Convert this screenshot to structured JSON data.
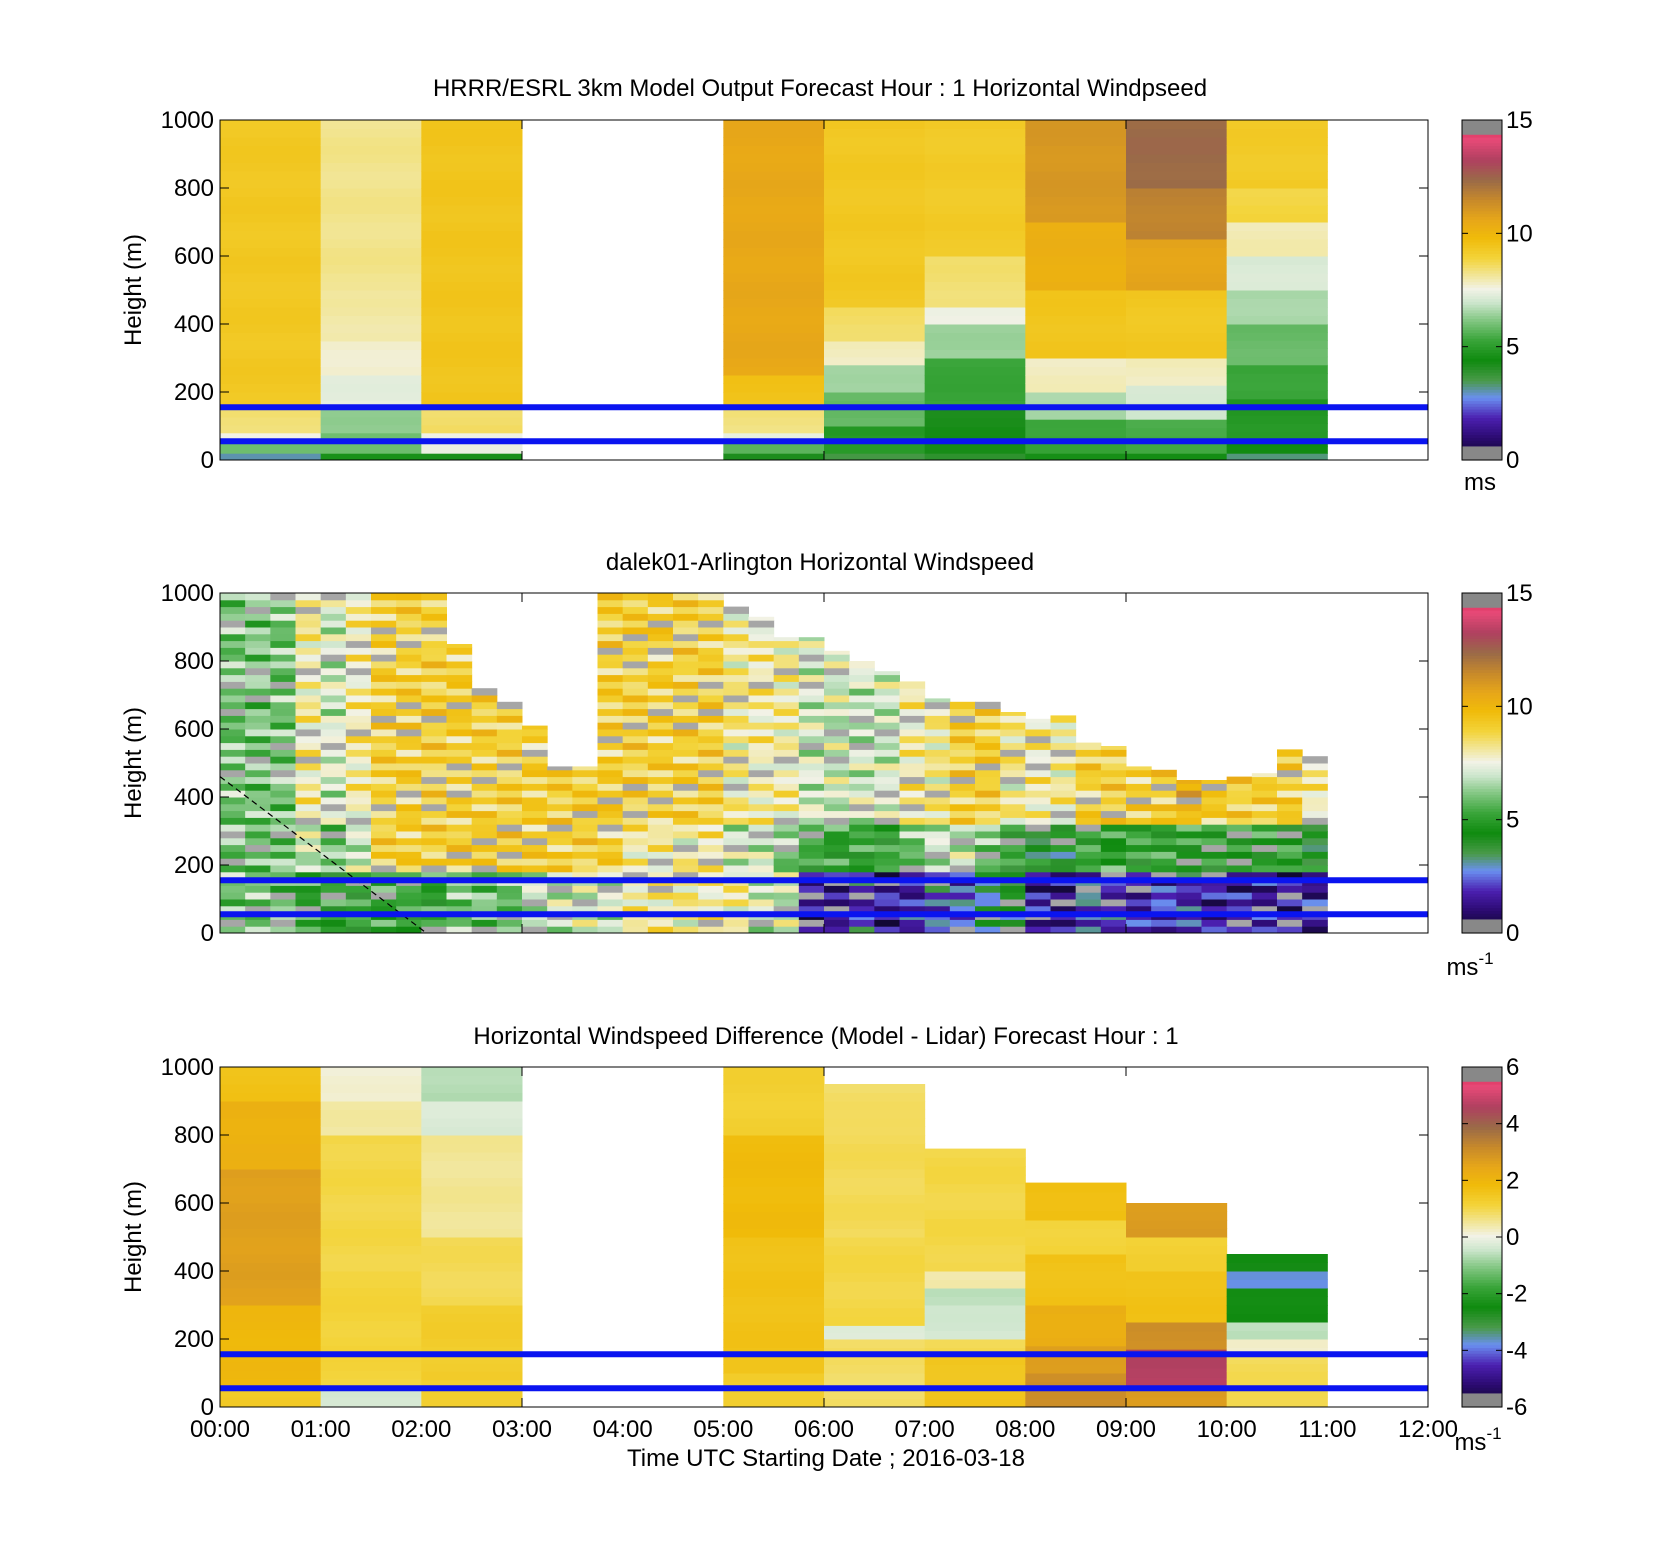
{
  "chart_data": [
    {
      "type": "heatmap",
      "title": "HRRR/ESRL 3km Model Output   Forecast Hour : 1 Horizontal Windpseed",
      "ylabel": "Height (m)",
      "xlabel": "",
      "xlim_hours": [
        0,
        12
      ],
      "ylim": [
        0,
        1000
      ],
      "yticks": [
        "0",
        "200",
        "400",
        "600",
        "800",
        "1000"
      ],
      "colorbar": {
        "ticks": [
          "0",
          "5",
          "10",
          "15"
        ],
        "unit": "ms",
        "range": [
          0,
          15
        ]
      },
      "reference_lines_m": [
        55,
        155
      ],
      "columns": [
        {
          "hour": 0,
          "top": 1000,
          "levels": [
            [
              0,
              20,
              3
            ],
            [
              20,
              50,
              5.8
            ],
            [
              50,
              80,
              7.5
            ],
            [
              80,
              150,
              8.4
            ],
            [
              150,
              1000,
              9.3
            ]
          ]
        },
        {
          "hour": 1,
          "top": 1000,
          "levels": [
            [
              0,
              20,
              4.5
            ],
            [
              20,
              80,
              5.8
            ],
            [
              80,
              150,
              6.3
            ],
            [
              150,
              250,
              7.3
            ],
            [
              250,
              350,
              7.7
            ],
            [
              350,
              500,
              8.0
            ],
            [
              500,
              1000,
              8.2
            ]
          ]
        },
        {
          "hour": 2,
          "top": 1000,
          "levels": [
            [
              0,
              20,
              4.5
            ],
            [
              20,
              80,
              7.4
            ],
            [
              80,
              150,
              8.5
            ],
            [
              150,
              1000,
              9.4
            ]
          ]
        },
        {
          "hour": 5,
          "top": 1000,
          "levels": [
            [
              0,
              20,
              4.2
            ],
            [
              20,
              50,
              5.6
            ],
            [
              50,
              80,
              7.4
            ],
            [
              80,
              150,
              8.3
            ],
            [
              150,
              250,
              9.5
            ],
            [
              250,
              1000,
              10.5
            ]
          ]
        },
        {
          "hour": 6,
          "top": 1000,
          "levels": [
            [
              0,
              20,
              3.5
            ],
            [
              20,
              100,
              4.8
            ],
            [
              100,
              200,
              5.8
            ],
            [
              200,
              280,
              6.5
            ],
            [
              280,
              350,
              7.8
            ],
            [
              350,
              450,
              8.5
            ],
            [
              450,
              1000,
              9.3
            ]
          ]
        },
        {
          "hour": 7,
          "top": 1000,
          "levels": [
            [
              0,
              20,
              3.8
            ],
            [
              20,
              150,
              4.2
            ],
            [
              150,
              300,
              5.2
            ],
            [
              300,
              400,
              6.4
            ],
            [
              400,
              450,
              7.5
            ],
            [
              450,
              600,
              8.4
            ],
            [
              600,
              1000,
              9.2
            ]
          ]
        },
        {
          "hour": 8,
          "top": 1000,
          "levels": [
            [
              0,
              20,
              4.5
            ],
            [
              20,
              120,
              5.2
            ],
            [
              120,
              200,
              6.5
            ],
            [
              200,
              300,
              7.8
            ],
            [
              300,
              500,
              9.4
            ],
            [
              500,
              700,
              10.2
            ],
            [
              700,
              1000,
              11.0
            ]
          ]
        },
        {
          "hour": 9,
          "top": 1000,
          "levels": [
            [
              0,
              20,
              4.5
            ],
            [
              20,
              120,
              5.4
            ],
            [
              120,
              220,
              7.0
            ],
            [
              220,
              300,
              7.8
            ],
            [
              300,
              500,
              9.3
            ],
            [
              500,
              650,
              10.6
            ],
            [
              650,
              800,
              11.6
            ],
            [
              800,
              1000,
              12.3
            ]
          ]
        },
        {
          "hour": 10,
          "top": 1000,
          "levels": [
            [
              0,
              20,
              3.3
            ],
            [
              20,
              60,
              4.4
            ],
            [
              60,
              180,
              4.8
            ],
            [
              180,
              280,
              5.2
            ],
            [
              280,
              400,
              5.8
            ],
            [
              400,
              500,
              6.5
            ],
            [
              500,
              600,
              7.1
            ],
            [
              600,
              700,
              7.9
            ],
            [
              700,
              800,
              8.8
            ],
            [
              800,
              1000,
              9.2
            ]
          ]
        }
      ]
    },
    {
      "type": "heatmap",
      "title": "dalek01-Arlington  Horizontal Windspeed",
      "ylabel": "Height (m)",
      "xlabel": "",
      "xlim_hours": [
        0,
        12
      ],
      "ylim": [
        0,
        1000
      ],
      "yticks": [
        "0",
        "200",
        "400",
        "600",
        "800",
        "1000"
      ],
      "colorbar": {
        "ticks": [
          "0",
          "5",
          "10",
          "15"
        ],
        "unit": "ms",
        "unit_sup": "-1",
        "range": [
          0,
          15
        ]
      },
      "reference_lines_m": [
        55,
        155
      ],
      "annotation_line": {
        "from": [
          0,
          460
        ],
        "to": [
          2.05,
          0
        ],
        "style": "dashed"
      },
      "column_width_hours": 0.25,
      "columns_top_m": [
        1000,
        1000,
        1000,
        1000,
        1000,
        1000,
        1000,
        1000,
        1000,
        850,
        720,
        680,
        610,
        490,
        490,
        1000,
        1000,
        1000,
        1000,
        1000,
        960,
        930,
        870,
        870,
        830,
        800,
        770,
        740,
        690,
        680,
        680,
        650,
        630,
        640,
        560,
        550,
        490,
        480,
        450,
        450,
        460,
        470,
        540,
        520
      ],
      "columns_low_m": [
        6,
        6,
        6,
        5,
        5,
        5,
        5,
        5,
        5,
        6,
        6,
        6,
        7,
        7,
        7,
        7,
        8,
        8,
        8,
        8,
        8,
        7,
        7,
        1.5,
        1.5,
        2.2,
        1.5,
        1.8,
        2.5,
        2.3,
        3.3,
        3.8,
        1.5,
        1.0,
        2.5,
        2.2,
        1.8,
        2.0,
        2.0,
        1.5,
        1.5,
        1.5,
        1.5,
        1.5
      ],
      "columns_mid_m": [
        6,
        6,
        6,
        7,
        6,
        7,
        9,
        9,
        9,
        9,
        9,
        9,
        9,
        9,
        9,
        9,
        8,
        8,
        8,
        8,
        7,
        7,
        6,
        5,
        5,
        5,
        5,
        6,
        7,
        7,
        6,
        5,
        4,
        4,
        5,
        5,
        5,
        5,
        5,
        5,
        5,
        5,
        5,
        4
      ],
      "columns_upper_m": [
        6,
        6,
        6,
        8,
        7,
        8,
        9,
        9,
        9,
        9,
        9,
        9,
        9,
        9,
        9,
        9,
        9,
        9,
        9,
        9,
        8,
        8,
        8,
        7,
        7,
        7,
        7,
        8,
        8,
        9,
        9,
        8,
        8,
        8,
        9,
        9,
        9,
        9,
        10,
        9,
        9,
        9,
        9,
        8
      ]
    },
    {
      "type": "heatmap",
      "title": "Horizontal Windspeed Difference (Model - Lidar) Forecast Hour : 1",
      "ylabel": "Height (m)",
      "xlabel": "Time UTC  Starting Date ; 2016-03-18",
      "xlim_hours": [
        0,
        12
      ],
      "ylim": [
        0,
        1000
      ],
      "yticks": [
        "0",
        "200",
        "400",
        "600",
        "800",
        "1000"
      ],
      "xticks": [
        "00:00",
        "01:00",
        "02:00",
        "03:00",
        "04:00",
        "05:00",
        "06:00",
        "07:00",
        "08:00",
        "09:00",
        "10:00",
        "11:00",
        "12:00"
      ],
      "colorbar": {
        "ticks": [
          "-6",
          "-4",
          "-2",
          "0",
          "2",
          "4",
          "6"
        ],
        "unit": "ms",
        "unit_sup": "-1",
        "range": [
          -6,
          6
        ]
      },
      "reference_lines_m": [
        55,
        155
      ],
      "columns": [
        {
          "hour": 0,
          "top": 1000,
          "levels": [
            [
              0,
              60,
              1.4
            ],
            [
              60,
              300,
              1.9
            ],
            [
              300,
              700,
              2.6
            ],
            [
              700,
              900,
              2.1
            ],
            [
              900,
              1000,
              1.6
            ]
          ]
        },
        {
          "hour": 1,
          "top": 1000,
          "levels": [
            [
              0,
              60,
              -0.4
            ],
            [
              60,
              400,
              1.1
            ],
            [
              400,
              800,
              1.0
            ],
            [
              800,
              900,
              0.4
            ],
            [
              900,
              1000,
              0.1
            ]
          ]
        },
        {
          "hour": 2,
          "top": 1000,
          "levels": [
            [
              0,
              80,
              1.2
            ],
            [
              80,
              300,
              1.3
            ],
            [
              300,
              500,
              0.9
            ],
            [
              500,
              800,
              0.5
            ],
            [
              800,
              900,
              -0.3
            ],
            [
              900,
              1000,
              -0.7
            ]
          ]
        },
        {
          "hour": 5,
          "top": 1000,
          "levels": [
            [
              0,
              100,
              1.3
            ],
            [
              100,
              500,
              1.6
            ],
            [
              500,
              800,
              1.8
            ],
            [
              800,
              1000,
              1.2
            ]
          ]
        },
        {
          "hour": 6,
          "top": 950,
          "levels": [
            [
              0,
              200,
              0.8
            ],
            [
              200,
              240,
              -0.2
            ],
            [
              240,
              500,
              1.0
            ],
            [
              500,
              850,
              0.9
            ],
            [
              850,
              950,
              0.8
            ]
          ]
        },
        {
          "hour": 7,
          "top": 760,
          "levels": [
            [
              0,
              150,
              1.5
            ],
            [
              150,
              200,
              0.9
            ],
            [
              200,
              300,
              -0.4
            ],
            [
              300,
              350,
              -0.6
            ],
            [
              350,
              400,
              0.4
            ],
            [
              400,
              760,
              1.0
            ]
          ]
        },
        {
          "hour": 8,
          "top": 660,
          "levels": [
            [
              0,
              100,
              3.0
            ],
            [
              100,
              180,
              2.6
            ],
            [
              180,
              300,
              2.2
            ],
            [
              300,
              450,
              1.6
            ],
            [
              450,
              550,
              1.1
            ],
            [
              550,
              660,
              1.7
            ]
          ]
        },
        {
          "hour": 9,
          "top": 600,
          "levels": [
            [
              0,
              60,
              2.7
            ],
            [
              60,
              170,
              4.6
            ],
            [
              170,
              250,
              3.0
            ],
            [
              250,
              400,
              1.6
            ],
            [
              400,
              500,
              1.2
            ],
            [
              500,
              600,
              2.7
            ]
          ]
        },
        {
          "hour": 10,
          "top": 450,
          "levels": [
            [
              0,
              60,
              1.0
            ],
            [
              60,
              150,
              0.9
            ],
            [
              150,
              200,
              0.2
            ],
            [
              200,
              250,
              -0.6
            ],
            [
              250,
              350,
              -2.5
            ],
            [
              350,
              400,
              -3.8
            ],
            [
              400,
              450,
              -2.6
            ]
          ]
        }
      ]
    }
  ]
}
